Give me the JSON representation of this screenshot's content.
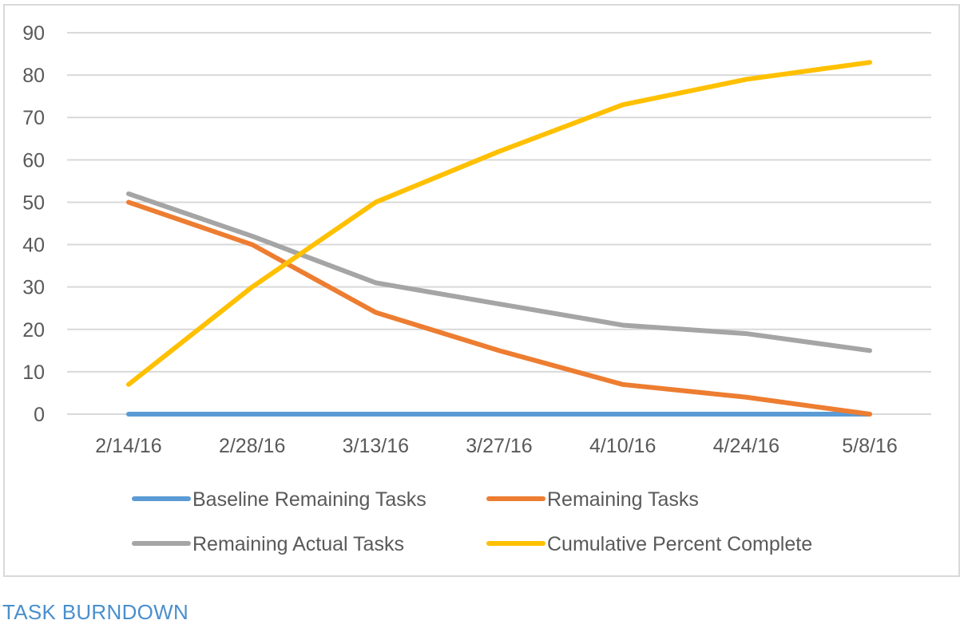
{
  "caption": "TASK BURNDOWN",
  "chart_data": {
    "type": "line",
    "title": "",
    "xlabel": "",
    "ylabel": "",
    "categories": [
      "2/14/16",
      "2/28/16",
      "3/13/16",
      "3/27/16",
      "4/10/16",
      "4/24/16",
      "5/8/16"
    ],
    "ylim": [
      0,
      90
    ],
    "yticks": [
      0,
      10,
      20,
      30,
      40,
      50,
      60,
      70,
      80,
      90
    ],
    "grid": true,
    "legend_position": "bottom",
    "series": [
      {
        "name": "Baseline Remaining Tasks",
        "color": "#5b9bd5",
        "values": [
          0,
          0,
          0,
          0,
          0,
          0,
          0
        ]
      },
      {
        "name": "Remaining Tasks",
        "color": "#ed7d31",
        "values": [
          50,
          40,
          24,
          15,
          7,
          4,
          0
        ]
      },
      {
        "name": "Remaining Actual Tasks",
        "color": "#a5a5a5",
        "values": [
          52,
          42,
          31,
          26,
          21,
          19,
          15
        ]
      },
      {
        "name": "Cumulative Percent Complete",
        "color": "#ffc000",
        "values": [
          7,
          30,
          50,
          62,
          73,
          79,
          83
        ]
      }
    ]
  }
}
